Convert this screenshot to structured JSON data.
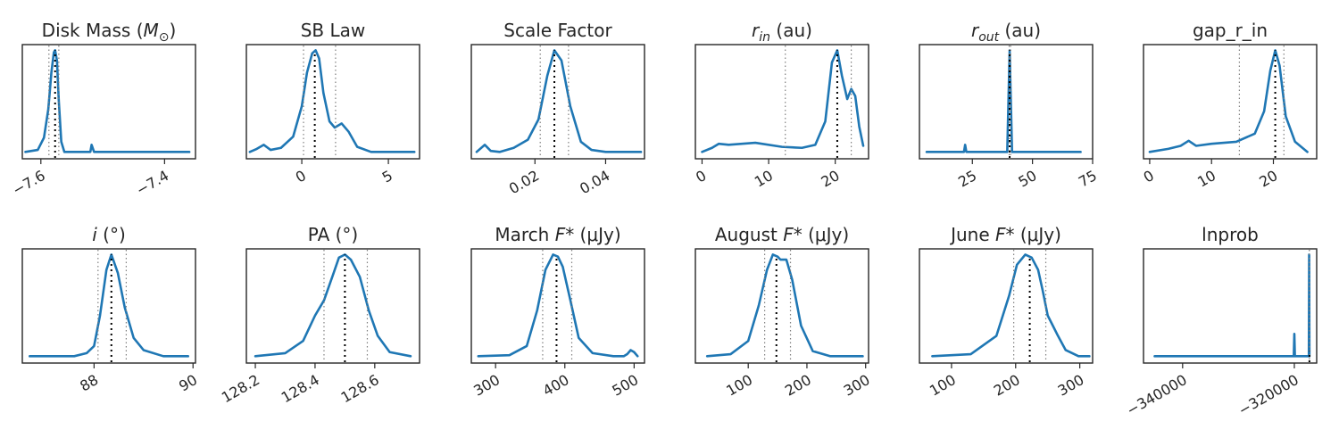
{
  "colors": {
    "curve": "#1f77b4",
    "median": "#000000",
    "interval": "#808080",
    "frame": "#262626"
  },
  "chart_data": [
    {
      "type": "line",
      "title_main": "Disk Mass (",
      "title_sym": "M",
      "title_sub": "⊙",
      "title_end": ")",
      "xlim": [
        -7.63,
        -7.35
      ],
      "ticks": [
        -7.6,
        -7.4
      ],
      "tick_labels": [
        "−7.6",
        "−7.4"
      ],
      "median": -7.577,
      "interval": [
        -7.587,
        -7.571
      ],
      "x": [
        -7.625,
        -7.605,
        -7.595,
        -7.588,
        -7.583,
        -7.579,
        -7.577,
        -7.574,
        -7.571,
        -7.567,
        -7.562,
        -7.53,
        -7.52,
        -7.518,
        -7.514,
        -7.49,
        -7.36
      ],
      "y": [
        0.0,
        0.02,
        0.14,
        0.42,
        0.78,
        0.98,
        1.0,
        0.9,
        0.5,
        0.1,
        0.0,
        0.0,
        0.0,
        0.07,
        0.0,
        0.0,
        0.0
      ]
    },
    {
      "type": "line",
      "title_main": "SB Law",
      "xlim": [
        -3.2,
        6.8
      ],
      "ticks": [
        0,
        5
      ],
      "tick_labels": [
        "0",
        "5"
      ],
      "median": 0.75,
      "interval": [
        0.1,
        1.95
      ],
      "x": [
        -3.0,
        -2.6,
        -2.2,
        -1.8,
        -1.2,
        -0.5,
        0.0,
        0.3,
        0.6,
        0.8,
        1.0,
        1.25,
        1.6,
        1.9,
        2.3,
        2.7,
        3.2,
        4.0,
        6.5
      ],
      "y": [
        0.0,
        0.03,
        0.07,
        0.02,
        0.04,
        0.15,
        0.45,
        0.78,
        0.97,
        1.0,
        0.92,
        0.58,
        0.3,
        0.24,
        0.28,
        0.2,
        0.05,
        0.0,
        0.0
      ]
    },
    {
      "type": "line",
      "title_main": "Scale Factor",
      "xlim": [
        0.002,
        0.051
      ],
      "ticks": [
        0.02,
        0.04
      ],
      "tick_labels": [
        "0.02",
        "0.04"
      ],
      "median": 0.0255,
      "interval": [
        0.0215,
        0.0295
      ],
      "x": [
        0.0035,
        0.0058,
        0.0075,
        0.01,
        0.014,
        0.018,
        0.021,
        0.0235,
        0.0255,
        0.0275,
        0.03,
        0.033,
        0.036,
        0.04,
        0.05
      ],
      "y": [
        0.0,
        0.07,
        0.01,
        0.0,
        0.04,
        0.12,
        0.32,
        0.75,
        1.0,
        0.9,
        0.45,
        0.1,
        0.02,
        0.0,
        0.0
      ]
    },
    {
      "type": "line",
      "title_main": "",
      "title_sym": "r",
      "title_sub": "in",
      "title_end": " (au)",
      "xlim": [
        -1,
        25
      ],
      "ticks": [
        0,
        10,
        20
      ],
      "tick_labels": [
        "0",
        "10",
        "20"
      ],
      "median": 20.3,
      "interval": [
        12.5,
        22.4
      ],
      "x": [
        0.0,
        1.5,
        2.5,
        4,
        8,
        12,
        15,
        17,
        18.5,
        19.5,
        20.3,
        21.0,
        21.8,
        22.4,
        23.0,
        23.6,
        24.2
      ],
      "y": [
        0.0,
        0.04,
        0.08,
        0.07,
        0.09,
        0.05,
        0.04,
        0.07,
        0.3,
        0.88,
        1.0,
        0.75,
        0.52,
        0.62,
        0.55,
        0.25,
        0.06
      ]
    },
    {
      "type": "line",
      "title_main": "",
      "title_sym": "r",
      "title_sub": "out",
      "title_end": " (au)",
      "xlim": [
        3,
        75
      ],
      "ticks": [
        25,
        50,
        75
      ],
      "tick_labels": [
        "25",
        "50",
        "75"
      ],
      "median": 40.5,
      "interval": [
        40.3,
        40.9
      ],
      "x": [
        6,
        20,
        21.5,
        22,
        22.5,
        24,
        39.5,
        40.0,
        40.5,
        41.0,
        41.5,
        43,
        70
      ],
      "y": [
        0.0,
        0.0,
        0.0,
        0.07,
        0.0,
        0.0,
        0.0,
        0.5,
        1.0,
        0.5,
        0.0,
        0.0,
        0.0
      ]
    },
    {
      "type": "line",
      "title_main": "gap_r_in",
      "xlim": [
        -1,
        27
      ],
      "ticks": [
        0,
        10,
        20
      ],
      "tick_labels": [
        "0",
        "10",
        "20"
      ],
      "median": 20.3,
      "interval": [
        14.5,
        21.7
      ],
      "x": [
        0.0,
        3,
        5,
        6.3,
        7.5,
        10,
        14,
        17,
        18.5,
        19.5,
        20.3,
        21.0,
        22.0,
        23.5,
        25.5
      ],
      "y": [
        0.0,
        0.03,
        0.06,
        0.11,
        0.06,
        0.08,
        0.1,
        0.18,
        0.4,
        0.8,
        1.0,
        0.85,
        0.35,
        0.1,
        0.0
      ]
    },
    {
      "type": "line",
      "title_main": "",
      "title_sym": "i",
      "title_end": " (°)",
      "xlim": [
        86.55,
        90.05
      ],
      "ticks": [
        88,
        90
      ],
      "tick_labels": [
        "88",
        "90"
      ],
      "median": 88.35,
      "interval": [
        88.08,
        88.65
      ],
      "x": [
        86.7,
        87.6,
        87.85,
        88.0,
        88.12,
        88.25,
        88.35,
        88.48,
        88.62,
        88.8,
        89.0,
        89.4,
        89.9
      ],
      "y": [
        0.0,
        0.0,
        0.03,
        0.1,
        0.4,
        0.85,
        1.0,
        0.82,
        0.48,
        0.18,
        0.06,
        0.0,
        0.0
      ]
    },
    {
      "type": "line",
      "title_main": "PA  (°)",
      "xlim": [
        128.17,
        128.75
      ],
      "ticks": [
        128.2,
        128.4,
        128.6
      ],
      "tick_labels": [
        "128.2",
        "128.4",
        "128.6"
      ],
      "median": 128.5,
      "interval": [
        128.43,
        128.575
      ],
      "x": [
        128.2,
        128.3,
        128.36,
        128.4,
        128.43,
        128.46,
        128.48,
        128.5,
        128.52,
        128.55,
        128.58,
        128.61,
        128.65,
        128.72
      ],
      "y": [
        0.0,
        0.03,
        0.15,
        0.4,
        0.55,
        0.8,
        0.97,
        1.0,
        0.95,
        0.78,
        0.45,
        0.2,
        0.04,
        0.0
      ]
    },
    {
      "type": "line",
      "title_main": "March ",
      "title_sym": "F",
      "title_sub": "*",
      "title_end": " (μJy)",
      "xlim": [
        265,
        515
      ],
      "ticks": [
        300,
        400,
        500
      ],
      "tick_labels": [
        "300",
        "400",
        "500"
      ],
      "median": 388,
      "interval": [
        368,
        410
      ],
      "x": [
        275,
        320,
        345,
        360,
        372,
        383,
        390,
        397,
        408,
        420,
        440,
        470,
        485,
        490,
        495,
        500,
        505
      ],
      "y": [
        0.0,
        0.01,
        0.1,
        0.45,
        0.85,
        1.0,
        0.98,
        0.88,
        0.55,
        0.18,
        0.03,
        0.0,
        0.0,
        0.02,
        0.06,
        0.04,
        0.0
      ]
    },
    {
      "type": "line",
      "title_main": "August ",
      "title_sym": "F",
      "title_sub": "*",
      "title_end": " (μJy)",
      "xlim": [
        10,
        305
      ],
      "ticks": [
        100,
        200,
        300
      ],
      "tick_labels": [
        "100",
        "200",
        "300"
      ],
      "median": 148,
      "interval": [
        128,
        172
      ],
      "x": [
        30,
        70,
        100,
        118,
        132,
        142,
        150,
        155,
        165,
        175,
        190,
        210,
        240,
        295
      ],
      "y": [
        0.0,
        0.02,
        0.15,
        0.5,
        0.85,
        1.0,
        0.98,
        0.95,
        0.95,
        0.75,
        0.3,
        0.05,
        0.0,
        0.0
      ]
    },
    {
      "type": "line",
      "title_main": "June ",
      "title_sym": "F",
      "title_sub": "*",
      "title_end": " (μJy)",
      "xlim": [
        50,
        320
      ],
      "ticks": [
        100,
        200,
        300
      ],
      "tick_labels": [
        "100",
        "200",
        "300"
      ],
      "median": 222,
      "interval": [
        197,
        247
      ],
      "x": [
        70,
        130,
        170,
        190,
        202,
        215,
        225,
        235,
        242,
        250,
        258,
        266,
        278,
        298,
        315
      ],
      "y": [
        0.0,
        0.02,
        0.2,
        0.6,
        0.9,
        1.0,
        0.97,
        0.85,
        0.65,
        0.4,
        0.3,
        0.2,
        0.06,
        0.0,
        0.0
      ]
    },
    {
      "type": "line",
      "title_main": "lnprob",
      "xlim": [
        -347000,
        -316000
      ],
      "ticks": [
        -340000,
        -320000
      ],
      "tick_labels": [
        "−340000",
        "−320000"
      ],
      "median": -317300,
      "interval": [
        -317300,
        -317300
      ],
      "x": [
        -345000,
        -320100,
        -320000,
        -319900,
        -317500,
        -317400,
        -317350,
        -317300
      ],
      "y": [
        0.0,
        0.0,
        0.22,
        0.0,
        0.0,
        0.0,
        1.0,
        0.0
      ]
    }
  ]
}
